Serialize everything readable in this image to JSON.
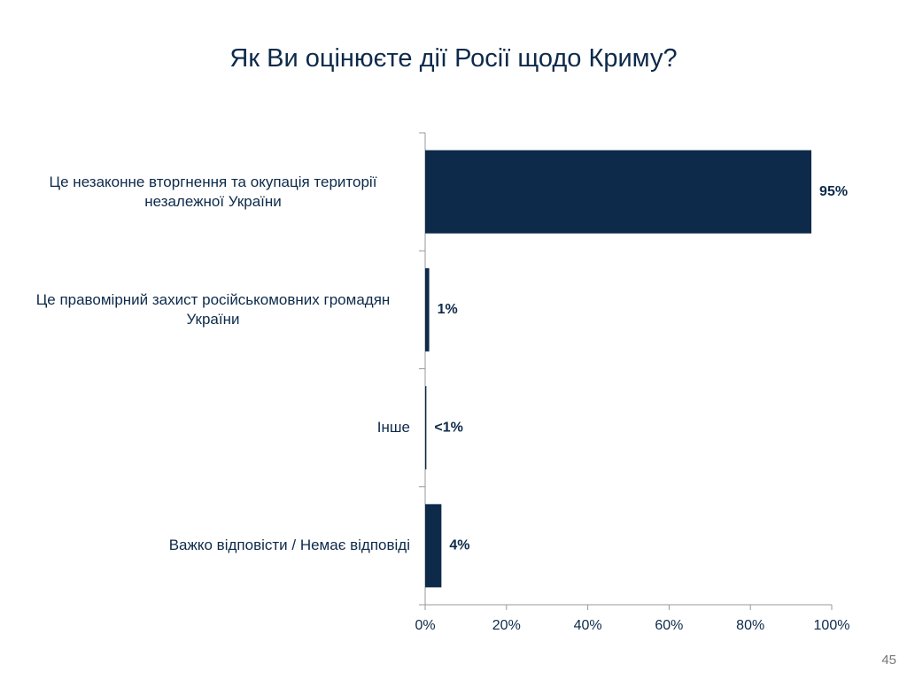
{
  "chart_data": {
    "type": "bar",
    "orientation": "horizontal",
    "title": "Як Ви оцінюєте дії Росії щодо Криму?",
    "categories": [
      "Це незаконне вторгнення та окупація території незалежної України",
      "Це правомірний захист російськомовних громадян України",
      "Інше",
      "Важко відповісти / Немає відповіді"
    ],
    "values": [
      95,
      1,
      0.3,
      4
    ],
    "value_labels": [
      "95%",
      "1%",
      "<1%",
      "4%"
    ],
    "color": "#0d2a4a",
    "xlim": [
      0,
      100
    ],
    "xticks": [
      {
        "value": 0,
        "label": "0%"
      },
      {
        "value": 20,
        "label": "20%"
      },
      {
        "value": 40,
        "label": "40%"
      },
      {
        "value": 60,
        "label": "60%"
      },
      {
        "value": 80,
        "label": "80%"
      },
      {
        "value": 100,
        "label": "100%"
      }
    ],
    "grid": false
  },
  "page_number": "45"
}
